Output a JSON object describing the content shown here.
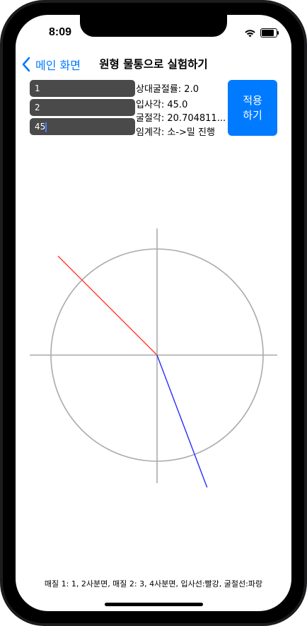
{
  "status_bar": {
    "time": "8:09"
  },
  "nav": {
    "back_label": "메인 화면",
    "title": "원형 물통으로 실험하기"
  },
  "inputs": {
    "medium1_value": "1",
    "medium2_value": "2",
    "incidence_angle_value": "45"
  },
  "info": {
    "relative_index": "상대굴절률: 2.0",
    "incidence_angle": "입사각: 45.0",
    "refraction_angle": "굴절각: 20.704811...",
    "critical_angle": "임계각: 소->밀 진행"
  },
  "apply_button": {
    "label_line1": "적용",
    "label_line2": "하기"
  },
  "diagram": {
    "incident_color": "#ff3b30",
    "refracted_color": "#2a2aff",
    "axis_color": "#aaaaaa",
    "incidence_angle_deg": 45.0,
    "refraction_angle_deg": 20.704811
  },
  "caption": "매질 1: 1, 2사분면, 매질 2: 3, 4사분면, 입사선:빨강, 굴절선:파랑",
  "colors": {
    "accent": "#007aff",
    "field_bg": "#4a4a4a"
  }
}
